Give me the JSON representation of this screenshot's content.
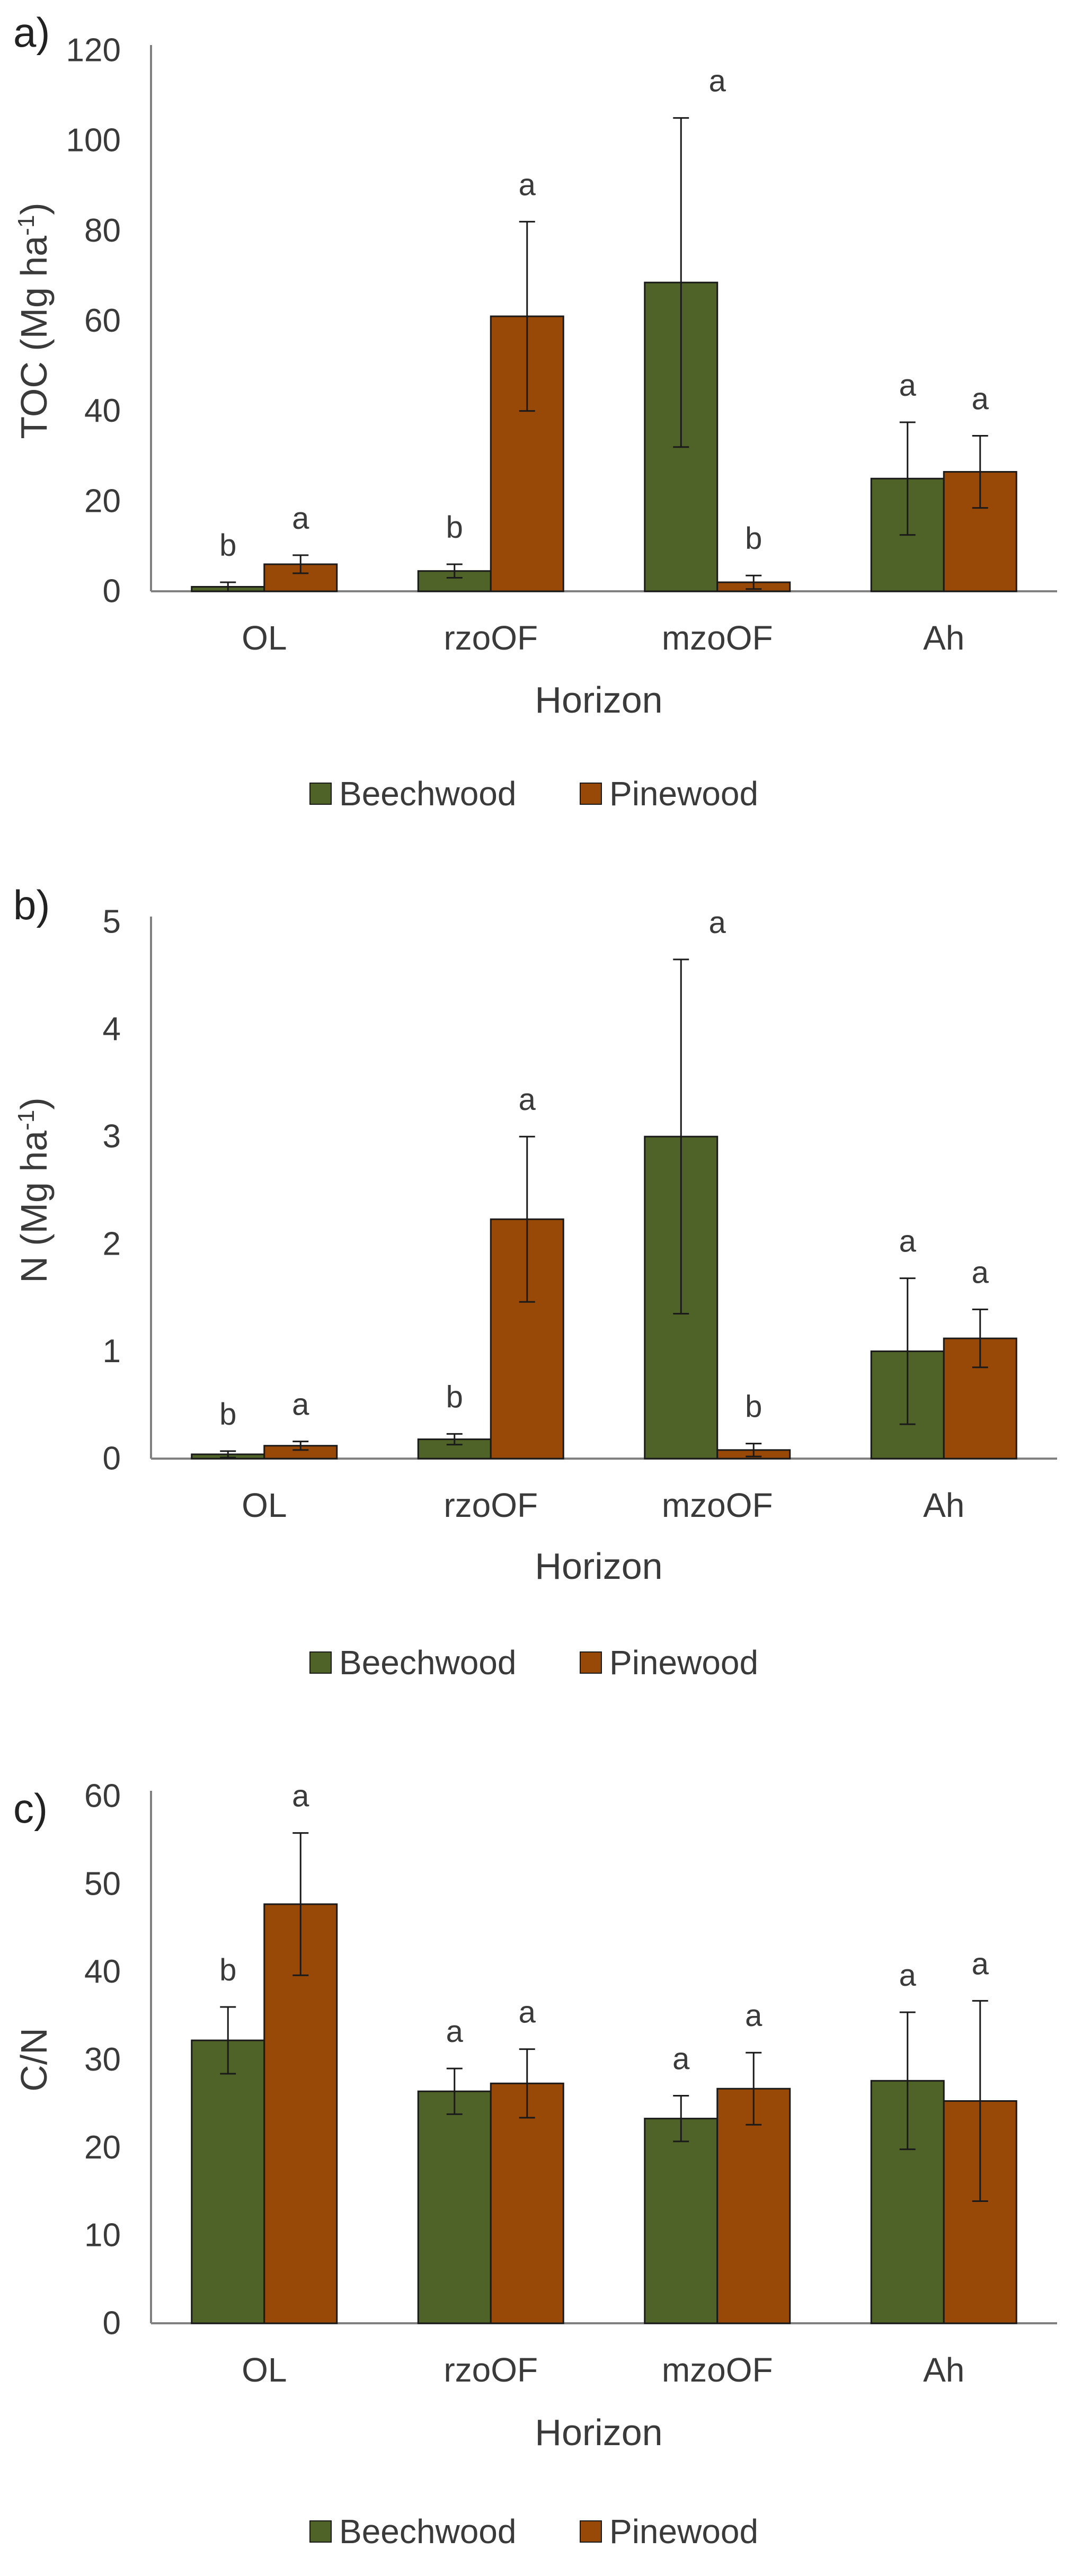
{
  "colors": {
    "beechwood": "#4f6228",
    "pinewood": "#984807"
  },
  "chart_data": [
    {
      "type": "bar",
      "panel_label": "a)",
      "xlabel": "Horizon",
      "ylabel": "TOC (Mg ha",
      "ylabel_sup": "-1",
      "ylabel_close": ")",
      "ylim": [
        0,
        120
      ],
      "yticks": [
        0,
        20,
        40,
        60,
        80,
        100,
        120
      ],
      "tick_labels": [
        "0",
        "20",
        "40",
        "60",
        "80",
        "100",
        "120"
      ],
      "categories": [
        "OL",
        "rzoOF",
        "mzoOF",
        "Ah"
      ],
      "series": [
        {
          "name": "Beechwood",
          "values": [
            1.0,
            4.5,
            68.5,
            25.0
          ],
          "errors": [
            1.0,
            1.5,
            36.5,
            12.5
          ],
          "letters": [
            "b",
            "b",
            "",
            "a"
          ]
        },
        {
          "name": "Pinewood",
          "values": [
            6.0,
            61.0,
            2.0,
            26.5
          ],
          "errors": [
            2.0,
            21.0,
            1.5,
            8.0
          ],
          "letters": [
            "a",
            "a",
            "b",
            "a"
          ]
        }
      ],
      "group_letters": [
        "",
        "",
        "a",
        ""
      ],
      "legend": [
        "Beechwood",
        "Pinewood"
      ],
      "legend_position": "bottom"
    },
    {
      "type": "bar",
      "panel_label": "b)",
      "xlabel": "Horizon",
      "ylabel": "N (Mg ha",
      "ylabel_sup": "-1",
      "ylabel_close": ")",
      "ylim": [
        0,
        5
      ],
      "yticks": [
        0,
        1,
        2,
        3,
        4,
        5
      ],
      "tick_labels": [
        "0",
        "1",
        "2",
        "3",
        "4",
        "5"
      ],
      "categories": [
        "OL",
        "rzoOF",
        "mzoOF",
        "Ah"
      ],
      "series": [
        {
          "name": "Beechwood",
          "values": [
            0.04,
            0.18,
            3.0,
            1.0
          ],
          "errors": [
            0.03,
            0.05,
            1.65,
            0.68
          ],
          "letters": [
            "b",
            "b",
            "",
            "a"
          ]
        },
        {
          "name": "Pinewood",
          "values": [
            0.12,
            2.23,
            0.08,
            1.12
          ],
          "errors": [
            0.04,
            0.77,
            0.06,
            0.27
          ],
          "letters": [
            "a",
            "a",
            "b",
            "a"
          ]
        }
      ],
      "group_letters": [
        "",
        "",
        "a",
        ""
      ],
      "legend": [
        "Beechwood",
        "Pinewood"
      ],
      "legend_position": "bottom"
    },
    {
      "type": "bar",
      "panel_label": "c)",
      "xlabel": "Horizon",
      "ylabel": "C/N",
      "ylabel_sup": "",
      "ylabel_close": "",
      "ylim": [
        0,
        60
      ],
      "yticks": [
        0,
        10,
        20,
        30,
        40,
        50,
        60
      ],
      "tick_labels": [
        "0",
        "10",
        "20",
        "30",
        "40",
        "50",
        "60"
      ],
      "categories": [
        "OL",
        "rzoOF",
        "mzoOF",
        "Ah"
      ],
      "series": [
        {
          "name": "Beechwood",
          "values": [
            32.2,
            26.4,
            23.3,
            27.6
          ],
          "errors": [
            3.8,
            2.6,
            2.6,
            7.8
          ],
          "letters": [
            "b",
            "a",
            "a",
            "a"
          ]
        },
        {
          "name": "Pinewood",
          "values": [
            47.7,
            27.3,
            26.7,
            25.3
          ],
          "errors": [
            8.1,
            3.9,
            4.1,
            11.4
          ],
          "letters": [
            "a",
            "a",
            "a",
            "a"
          ]
        }
      ],
      "group_letters": [
        "",
        "",
        "",
        ""
      ],
      "legend": [
        "Beechwood",
        "Pinewood"
      ],
      "legend_position": "bottom"
    }
  ]
}
